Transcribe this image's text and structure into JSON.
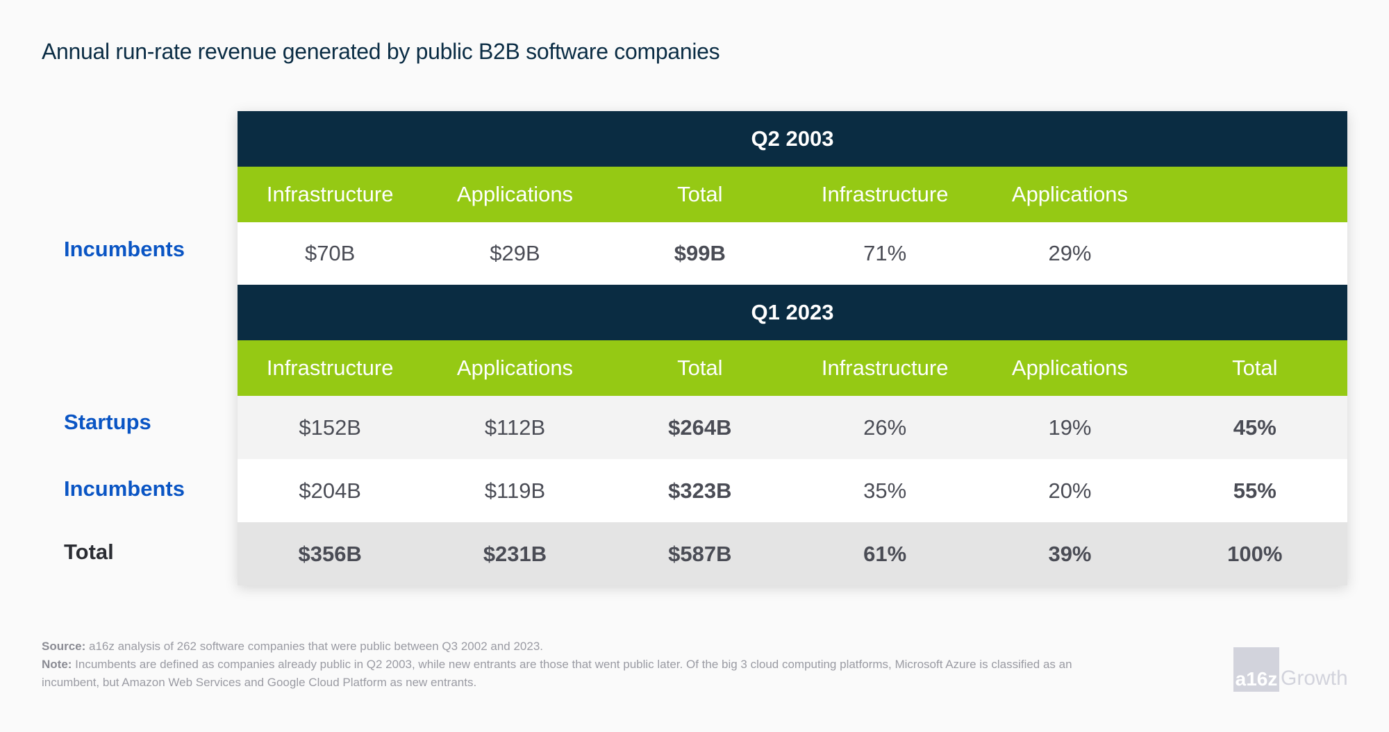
{
  "title": "Annual run-rate revenue generated by public B2B software companies",
  "colors": {
    "header_dark": "#0a2c42",
    "header_green": "#95c914",
    "label_blue": "#0a55c4"
  },
  "section1": {
    "period": "Q2 2003",
    "headers": [
      "Infrastructure",
      "Applications",
      "Total",
      "Infrastructure",
      "Applications",
      ""
    ],
    "rows": [
      {
        "label": "Incumbents",
        "values": [
          "$70B",
          "$29B",
          "$99B",
          "71%",
          "29%",
          ""
        ]
      }
    ]
  },
  "section2": {
    "period": "Q1 2023",
    "headers": [
      "Infrastructure",
      "Applications",
      "Total",
      "Infrastructure",
      "Applications",
      "Total"
    ],
    "rows": [
      {
        "label": "Startups",
        "values": [
          "$152B",
          "$112B",
          "$264B",
          "26%",
          "19%",
          "45%"
        ]
      },
      {
        "label": "Incumbents",
        "values": [
          "$204B",
          "$119B",
          "$323B",
          "35%",
          "20%",
          "55%"
        ]
      },
      {
        "label": "Total",
        "values": [
          "$356B",
          "$231B",
          "$587B",
          "61%",
          "39%",
          "100%"
        ]
      }
    ]
  },
  "footer": {
    "source_label": "Source:",
    "source_text": " a16z analysis of 262 software companies that were public between Q3 2002 and 2023.",
    "note_label": "Note:",
    "note_text_1": " Incumbents are defined as companies already public in Q2 2003, while new entrants are those that went public later. Of the big 3 cloud computing platforms, Microsoft Azure is classified as an",
    "note_text_2": "incumbent, but Amazon Web Services and Google Cloud Platform as new entrants."
  },
  "logo": {
    "mark": "a16z",
    "text": "Growth"
  }
}
